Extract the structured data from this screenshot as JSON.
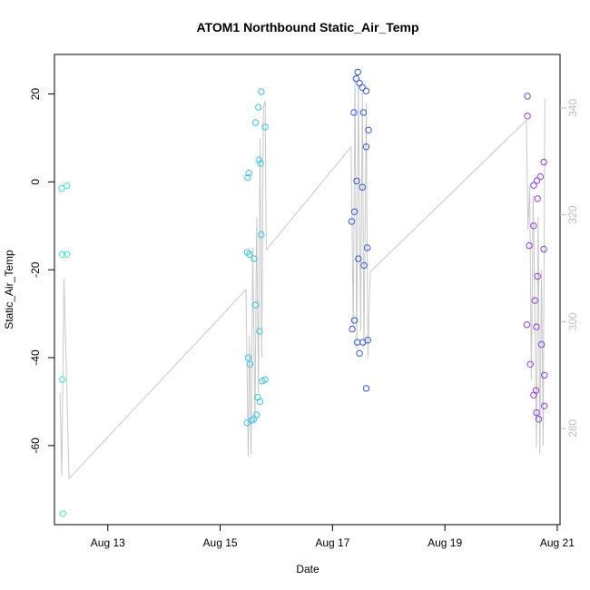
{
  "chart_data": {
    "type": "scatter",
    "title": "ATOM1 Northbound Static_Air_Temp",
    "xlabel": "Date",
    "ylabel": "Static_Air_Temp",
    "xlim": [
      12.05,
      21.05
    ],
    "ylim": [
      -78,
      29
    ],
    "y2lim": [
      262,
      350
    ],
    "x_ticks": [
      {
        "value": 13,
        "label": "Aug 13"
      },
      {
        "value": 15,
        "label": "Aug 15"
      },
      {
        "value": 17,
        "label": "Aug 17"
      },
      {
        "value": 19,
        "label": "Aug 19"
      },
      {
        "value": 21,
        "label": "Aug 21"
      }
    ],
    "y_ticks": [
      20,
      0,
      -20,
      -40,
      -60
    ],
    "y2_ticks": [
      340,
      320,
      300,
      280
    ],
    "grid": false,
    "series": [
      {
        "color": "#33f0c4",
        "points": [
          [
            12.18,
            -1.5
          ],
          [
            12.27,
            -0.9
          ],
          [
            12.19,
            -16.5
          ],
          [
            12.27,
            -16.5
          ],
          [
            12.19,
            -45.0
          ],
          [
            12.2,
            -75.5
          ]
        ]
      },
      {
        "color": "#33c7f2",
        "points": [
          [
            15.73,
            20.5
          ],
          [
            15.68,
            17.0
          ],
          [
            15.63,
            13.5
          ],
          [
            15.8,
            12.5
          ],
          [
            15.69,
            5.0
          ],
          [
            15.72,
            4.2
          ],
          [
            15.51,
            2.0
          ],
          [
            15.49,
            1.0
          ],
          [
            15.73,
            -12.0
          ],
          [
            15.48,
            -16.0
          ],
          [
            15.52,
            -16.5
          ],
          [
            15.6,
            -17.5
          ],
          [
            15.63,
            -28.0
          ],
          [
            15.7,
            -34.0
          ],
          [
            15.5,
            -40.0
          ],
          [
            15.53,
            -41.5
          ],
          [
            15.8,
            -45.0
          ],
          [
            15.75,
            -45.3
          ],
          [
            15.67,
            -49.0
          ],
          [
            15.71,
            -50.0
          ],
          [
            15.65,
            -53.0
          ],
          [
            15.6,
            -54.0
          ],
          [
            15.56,
            -54.3
          ],
          [
            15.48,
            -54.8
          ]
        ]
      },
      {
        "color": "#3355ee",
        "points": [
          [
            17.45,
            25.0
          ],
          [
            17.42,
            23.5
          ],
          [
            17.48,
            22.5
          ],
          [
            17.53,
            21.5
          ],
          [
            17.6,
            20.7
          ],
          [
            17.38,
            15.8
          ],
          [
            17.55,
            15.8
          ],
          [
            17.64,
            11.8
          ],
          [
            17.6,
            8.0
          ],
          [
            17.43,
            0.2
          ],
          [
            17.53,
            -1.2
          ],
          [
            17.39,
            -6.8
          ],
          [
            17.34,
            -9.0
          ],
          [
            17.62,
            -15.0
          ],
          [
            17.46,
            -17.5
          ],
          [
            17.56,
            -19.0
          ],
          [
            17.39,
            -31.5
          ],
          [
            17.35,
            -33.5
          ],
          [
            17.63,
            -36.0
          ],
          [
            17.44,
            -36.5
          ],
          [
            17.54,
            -36.5
          ],
          [
            17.48,
            -39.0
          ],
          [
            17.6,
            -47.0
          ]
        ]
      },
      {
        "color": "#8b3df0",
        "points": [
          [
            20.47,
            19.5
          ],
          [
            20.47,
            15.0
          ],
          [
            20.76,
            4.5
          ],
          [
            20.7,
            1.2
          ],
          [
            20.64,
            0.3
          ],
          [
            20.58,
            -0.8
          ],
          [
            20.65,
            -3.8
          ],
          [
            20.58,
            -10.0
          ],
          [
            20.5,
            -14.5
          ],
          [
            20.76,
            -15.3
          ],
          [
            20.65,
            -21.5
          ],
          [
            20.6,
            -27.0
          ],
          [
            20.46,
            -32.5
          ],
          [
            20.63,
            -33.0
          ],
          [
            20.72,
            -37.0
          ],
          [
            20.52,
            -41.5
          ],
          [
            20.77,
            -44.0
          ],
          [
            20.62,
            -47.5
          ],
          [
            20.58,
            -48.5
          ],
          [
            20.77,
            -51.0
          ],
          [
            20.63,
            -52.5
          ],
          [
            20.67,
            -54.0
          ]
        ]
      }
    ],
    "secondary_line": {
      "color": "#c8c8c8",
      "points": [
        [
          12.15,
          -48
        ],
        [
          12.18,
          -67
        ],
        [
          12.22,
          -22
        ],
        [
          12.27,
          -47
        ],
        [
          12.31,
          -67.5
        ],
        [
          15.46,
          -24.5
        ],
        [
          15.5,
          -62.5
        ],
        [
          15.52,
          -35
        ],
        [
          15.55,
          -62
        ],
        [
          15.58,
          -15
        ],
        [
          15.62,
          -55
        ],
        [
          15.65,
          -8
        ],
        [
          15.68,
          -48
        ],
        [
          15.71,
          10
        ],
        [
          15.74,
          -40
        ],
        [
          15.77,
          17
        ],
        [
          15.8,
          18.5
        ],
        [
          15.82,
          -15.5
        ],
        [
          17.33,
          8
        ],
        [
          17.37,
          -33
        ],
        [
          17.4,
          24
        ],
        [
          17.43,
          -38
        ],
        [
          17.46,
          22
        ],
        [
          17.5,
          -34
        ],
        [
          17.53,
          21
        ],
        [
          17.56,
          -38
        ],
        [
          17.6,
          18
        ],
        [
          17.63,
          -40
        ],
        [
          17.67,
          -20.5
        ],
        [
          20.45,
          14
        ],
        [
          20.48,
          -11
        ],
        [
          20.51,
          -1
        ],
        [
          20.54,
          -45
        ],
        [
          20.57,
          -3
        ],
        [
          20.6,
          -28
        ],
        [
          20.63,
          -60.5
        ],
        [
          20.66,
          -8
        ],
        [
          20.69,
          -62
        ],
        [
          20.72,
          -20
        ],
        [
          20.75,
          -60
        ],
        [
          20.78,
          19
        ]
      ]
    }
  }
}
